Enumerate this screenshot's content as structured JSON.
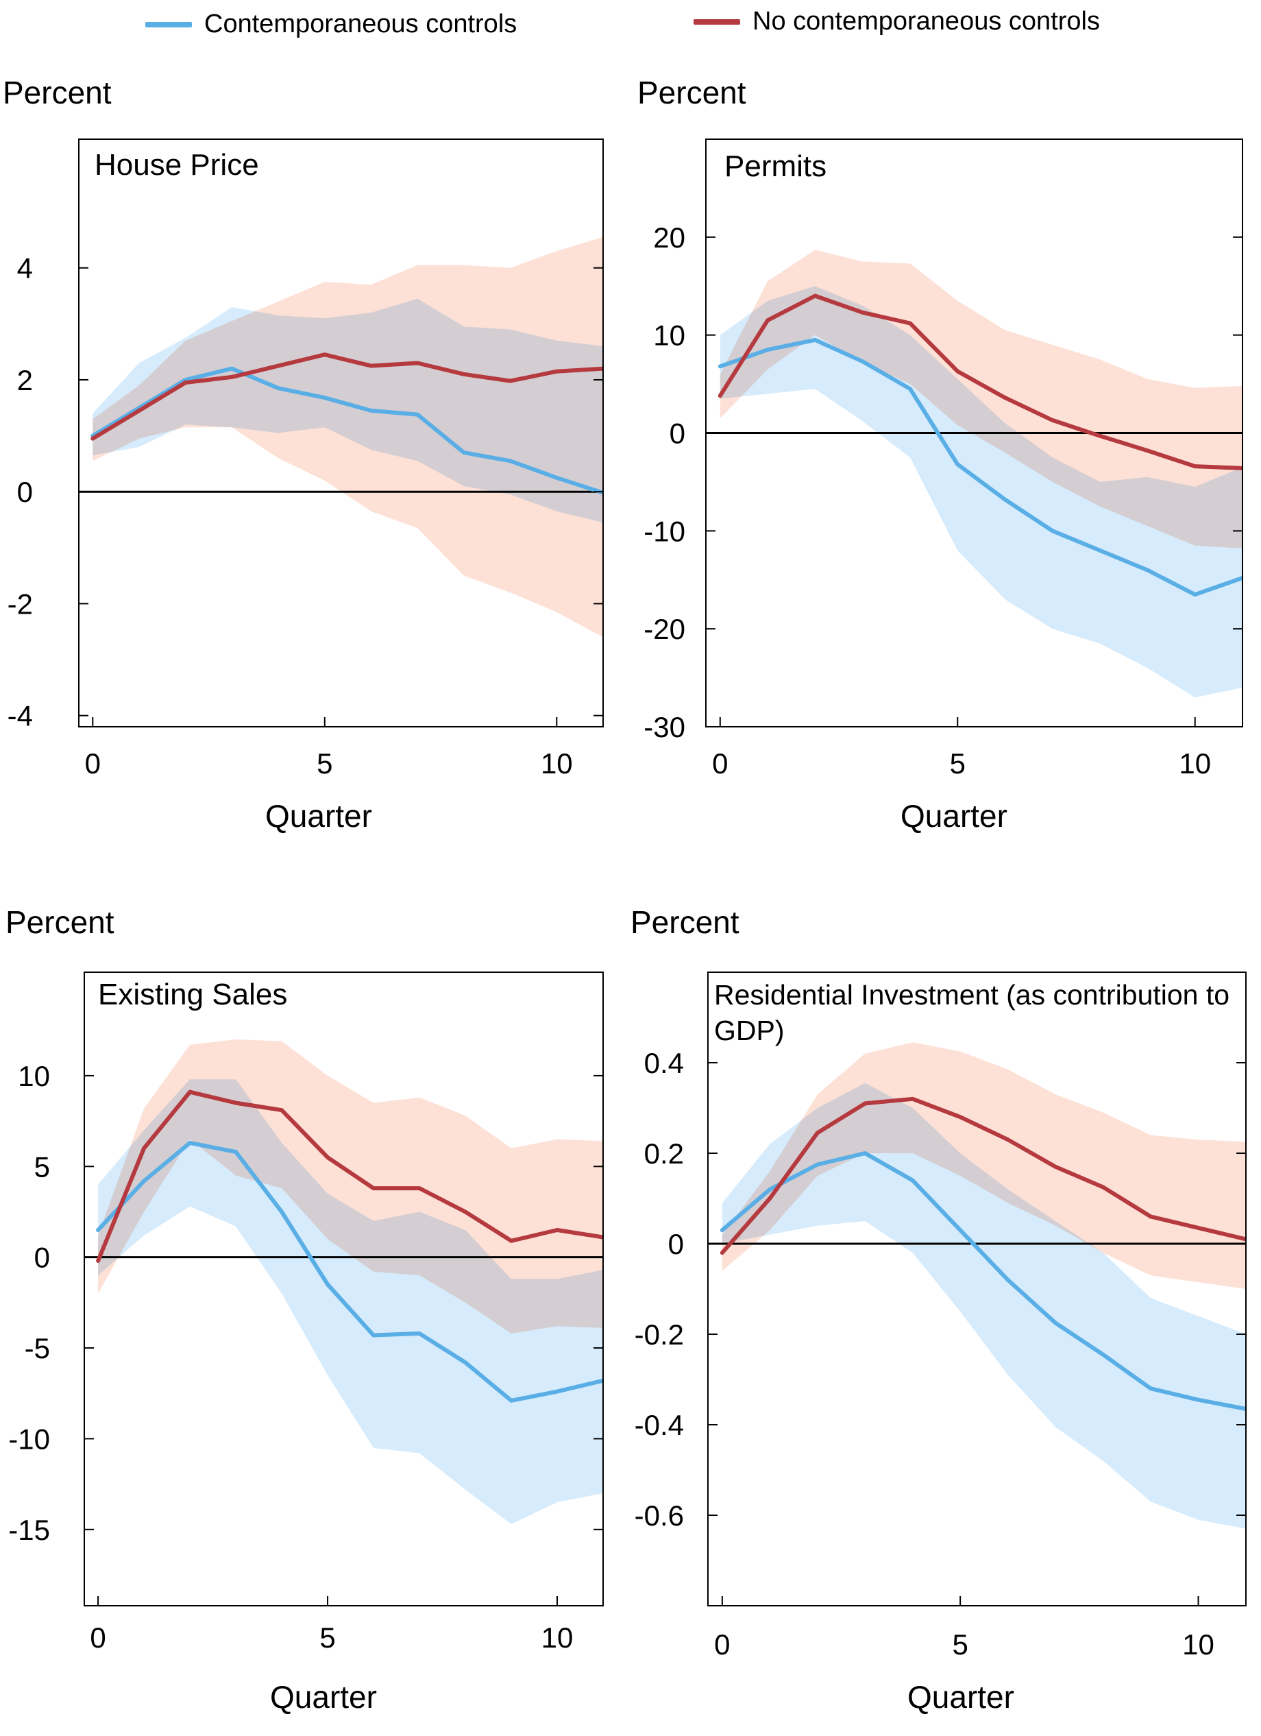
{
  "legend": {
    "contemporaneous": "Contemporaneous controls",
    "no_contemporaneous": "No contemporaneous controls"
  },
  "colors": {
    "contemporaneous": "#5aaee6",
    "contemporaneous_band": "#cfe8fa",
    "no_contemporaneous": "#b53a3f",
    "no_contemporaneous_band": "#fde0d6",
    "overlap_band": "#c9d4de"
  },
  "chart_data": [
    {
      "type": "line",
      "title": "House Price",
      "ylabel": "Percent",
      "xlabel": "Quarter",
      "x": [
        0,
        1,
        2,
        3,
        4,
        5,
        6,
        7,
        8,
        9,
        10,
        11
      ],
      "xticks": [
        0,
        5,
        10
      ],
      "yticks": [
        4,
        2,
        0,
        -2,
        -4
      ],
      "ylim": [
        -4.2,
        6.3
      ],
      "xlim": [
        -0.3,
        11
      ],
      "series": [
        {
          "name": "Contemporaneous controls",
          "values": [
            1.0,
            1.5,
            2.0,
            2.2,
            1.85,
            1.68,
            1.45,
            1.38,
            0.7,
            0.55,
            0.25,
            -0.02
          ],
          "lower": [
            0.65,
            0.8,
            1.2,
            1.15,
            1.05,
            1.15,
            0.75,
            0.55,
            0.1,
            -0.05,
            -0.35,
            -0.55
          ],
          "upper": [
            1.4,
            2.3,
            2.75,
            3.3,
            3.15,
            3.1,
            3.2,
            3.45,
            2.95,
            2.9,
            2.7,
            2.6
          ]
        },
        {
          "name": "No contemporaneous controls",
          "values": [
            0.95,
            1.45,
            1.95,
            2.05,
            2.25,
            2.45,
            2.25,
            2.3,
            2.1,
            1.98,
            2.15,
            2.2
          ],
          "lower": [
            0.55,
            0.95,
            1.15,
            1.15,
            0.6,
            0.2,
            -0.35,
            -0.65,
            -1.5,
            -1.8,
            -2.15,
            -2.6
          ],
          "upper": [
            1.3,
            1.9,
            2.7,
            3.05,
            3.4,
            3.75,
            3.7,
            4.05,
            4.05,
            4.0,
            4.3,
            4.55
          ]
        }
      ]
    },
    {
      "type": "line",
      "title": "Permits",
      "ylabel": "Percent",
      "xlabel": "Quarter",
      "x": [
        0,
        1,
        2,
        3,
        4,
        5,
        6,
        7,
        8,
        9,
        10,
        11
      ],
      "xticks": [
        0,
        5,
        10
      ],
      "yticks": [
        20,
        10,
        0,
        -10,
        -20,
        -30
      ],
      "ylim": [
        -30,
        30
      ],
      "xlim": [
        -0.3,
        11
      ],
      "series": [
        {
          "name": "Contemporaneous controls",
          "values": [
            6.8,
            8.5,
            9.5,
            7.3,
            4.5,
            -3.2,
            -6.8,
            -10.0,
            -12.0,
            -14.0,
            -16.5,
            -14.8
          ],
          "lower": [
            3.5,
            4.0,
            4.5,
            1.2,
            -2.5,
            -12.0,
            -17.0,
            -20.0,
            -21.5,
            -24.0,
            -27.0,
            -26.0
          ],
          "upper": [
            10.0,
            13.5,
            15.0,
            13.0,
            10.0,
            5.5,
            1.0,
            -2.5,
            -5.0,
            -4.5,
            -5.5,
            -3.5
          ]
        },
        {
          "name": "No contemporaneous controls",
          "values": [
            3.8,
            11.5,
            14.0,
            12.3,
            11.2,
            6.3,
            3.6,
            1.3,
            -0.3,
            -1.8,
            -3.4,
            -3.6
          ],
          "lower": [
            1.5,
            6.5,
            10.0,
            7.2,
            5.0,
            0.8,
            -2.0,
            -5.0,
            -7.5,
            -9.5,
            -11.5,
            -11.8
          ],
          "upper": [
            6.0,
            15.5,
            18.7,
            17.5,
            17.3,
            13.5,
            10.5,
            9.0,
            7.5,
            5.5,
            4.6,
            4.8
          ]
        }
      ]
    },
    {
      "type": "line",
      "title": "Existing Sales",
      "ylabel": "Percent",
      "xlabel": "Quarter",
      "x": [
        0,
        1,
        2,
        3,
        4,
        5,
        6,
        7,
        8,
        9,
        10,
        11
      ],
      "xticks": [
        0,
        5,
        10
      ],
      "yticks": [
        10,
        5,
        0,
        -5,
        -10,
        -15
      ],
      "ylim": [
        -19.2,
        15.7
      ],
      "xlim": [
        -0.3,
        11
      ],
      "series": [
        {
          "name": "Contemporaneous controls",
          "values": [
            1.5,
            4.2,
            6.3,
            5.8,
            2.5,
            -1.5,
            -4.3,
            -4.2,
            -5.8,
            -7.9,
            -7.4,
            -6.8
          ],
          "lower": [
            -1.0,
            1.2,
            2.8,
            1.7,
            -2.0,
            -6.5,
            -10.5,
            -10.8,
            -12.8,
            -14.7,
            -13.5,
            -13.0
          ],
          "upper": [
            4.0,
            7.0,
            9.8,
            9.8,
            6.3,
            3.5,
            2.0,
            2.5,
            1.5,
            -1.2,
            -1.2,
            -0.7
          ]
        },
        {
          "name": "No contemporaneous controls",
          "values": [
            -0.2,
            6.0,
            9.1,
            8.5,
            8.1,
            5.5,
            3.8,
            3.8,
            2.5,
            0.9,
            1.5,
            1.1
          ],
          "lower": [
            -2.0,
            2.5,
            6.5,
            4.5,
            3.8,
            1.0,
            -0.8,
            -1.0,
            -2.5,
            -4.2,
            -3.8,
            -3.9
          ],
          "upper": [
            1.2,
            8.2,
            11.7,
            12.0,
            11.9,
            10.0,
            8.5,
            8.8,
            7.8,
            6.0,
            6.5,
            6.4
          ]
        }
      ]
    },
    {
      "type": "line",
      "title": "Residential Investment (as contribution to GDP)",
      "ylabel": "Percent",
      "xlabel": "Quarter",
      "x": [
        0,
        1,
        2,
        3,
        4,
        5,
        6,
        7,
        8,
        9,
        10,
        11
      ],
      "xticks": [
        0,
        5,
        10
      ],
      "yticks": [
        0.4,
        0.2,
        0,
        -0.2,
        -0.4,
        -0.6
      ],
      "ytick_labels": [
        "0.4",
        "0.2",
        "0",
        "-0.2",
        "-0.4",
        "-0.6"
      ],
      "ylim": [
        -0.8,
        0.6
      ],
      "xlim": [
        -0.3,
        11
      ],
      "series": [
        {
          "name": "Contemporaneous controls",
          "values": [
            0.03,
            0.12,
            0.175,
            0.2,
            0.14,
            0.03,
            -0.08,
            -0.175,
            -0.245,
            -0.32,
            -0.345,
            -0.365
          ],
          "lower": [
            0.0,
            0.02,
            0.04,
            0.05,
            -0.02,
            -0.15,
            -0.29,
            -0.405,
            -0.48,
            -0.57,
            -0.61,
            -0.63
          ],
          "upper": [
            0.09,
            0.22,
            0.3,
            0.355,
            0.3,
            0.2,
            0.12,
            0.05,
            -0.02,
            -0.12,
            -0.16,
            -0.2
          ]
        },
        {
          "name": "No contemporaneous controls",
          "values": [
            -0.02,
            0.1,
            0.245,
            0.31,
            0.32,
            0.28,
            0.23,
            0.17,
            0.125,
            0.06,
            0.035,
            0.01
          ],
          "lower": [
            -0.06,
            0.03,
            0.15,
            0.2,
            0.2,
            0.15,
            0.09,
            0.04,
            -0.02,
            -0.07,
            -0.085,
            -0.1
          ],
          "upper": [
            0.02,
            0.16,
            0.33,
            0.42,
            0.445,
            0.425,
            0.385,
            0.33,
            0.29,
            0.24,
            0.23,
            0.225
          ]
        }
      ]
    }
  ]
}
